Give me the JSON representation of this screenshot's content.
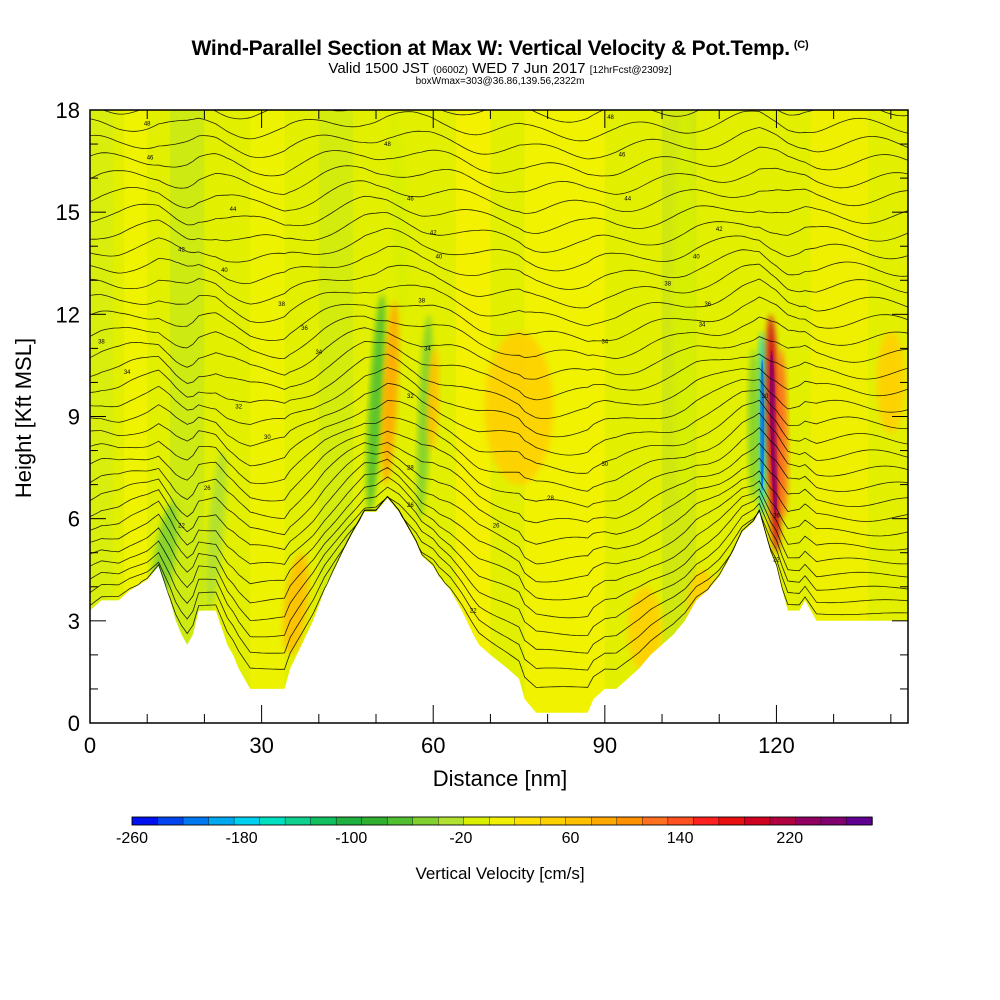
{
  "title": {
    "main": "Wind-Parallel Section at Max W: Vertical Velocity & Pot.Temp.",
    "copyright": "(C)",
    "valid_prefix": "Valid 1500 JST",
    "valid_utc": "(0600Z)",
    "valid_date": "WED 7 Jun 2017",
    "forecast": "[12hrFcst@2309z]",
    "box": "boxWmax=303@36.86,139.56,2322m"
  },
  "chart_data": {
    "type": "heatmap",
    "xlabel": "Distance [nm]",
    "ylabel": "Height [Kft MSL]",
    "xlim": [
      0,
      143
    ],
    "ylim": [
      0,
      18
    ],
    "x_ticks": [
      0,
      30,
      60,
      90,
      120
    ],
    "y_ticks": [
      0,
      3,
      6,
      9,
      12,
      15,
      18
    ],
    "terrain_kft": [
      [
        0,
        3.3
      ],
      [
        2,
        3.6
      ],
      [
        5,
        3.6
      ],
      [
        7,
        3.9
      ],
      [
        10,
        4.2
      ],
      [
        12,
        4.6
      ],
      [
        14,
        3.6
      ],
      [
        15,
        3.0
      ],
      [
        16,
        2.6
      ],
      [
        17,
        2.3
      ],
      [
        18,
        2.6
      ],
      [
        19,
        3.3
      ],
      [
        22,
        3.3
      ],
      [
        24,
        2.3
      ],
      [
        25,
        2.0
      ],
      [
        26,
        1.6
      ],
      [
        27,
        1.3
      ],
      [
        28,
        1.0
      ],
      [
        30,
        1.0
      ],
      [
        34,
        1.0
      ],
      [
        35,
        1.6
      ],
      [
        37,
        2.3
      ],
      [
        39,
        3.0
      ],
      [
        41,
        3.9
      ],
      [
        43,
        4.6
      ],
      [
        45,
        5.3
      ],
      [
        47,
        5.9
      ],
      [
        48,
        6.2
      ],
      [
        50,
        6.2
      ],
      [
        52,
        6.6
      ],
      [
        54,
        6.2
      ],
      [
        56,
        5.6
      ],
      [
        57,
        5.3
      ],
      [
        58,
        4.9
      ],
      [
        60,
        4.6
      ],
      [
        61,
        4.3
      ],
      [
        63,
        3.9
      ],
      [
        65,
        3.3
      ],
      [
        67,
        2.6
      ],
      [
        68,
        2.3
      ],
      [
        70,
        2.0
      ],
      [
        73,
        1.6
      ],
      [
        75,
        1.3
      ],
      [
        76,
        0.7
      ],
      [
        78,
        0.3
      ],
      [
        87,
        0.3
      ],
      [
        88,
        0.7
      ],
      [
        90,
        1.0
      ],
      [
        92,
        1.0
      ],
      [
        94,
        1.3
      ],
      [
        96,
        1.6
      ],
      [
        98,
        2.0
      ],
      [
        100,
        2.3
      ],
      [
        102,
        2.6
      ],
      [
        104,
        3.0
      ],
      [
        106,
        3.6
      ],
      [
        108,
        3.9
      ],
      [
        110,
        4.3
      ],
      [
        112,
        4.9
      ],
      [
        114,
        5.6
      ],
      [
        116,
        5.9
      ],
      [
        117,
        6.2
      ],
      [
        118,
        5.6
      ],
      [
        119,
        5.0
      ],
      [
        120,
        4.6
      ],
      [
        121,
        3.9
      ],
      [
        122,
        3.3
      ],
      [
        124,
        3.3
      ],
      [
        125,
        3.6
      ],
      [
        126,
        3.3
      ],
      [
        127,
        3.0
      ],
      [
        143,
        3.0
      ]
    ],
    "w_features": [
      {
        "x": 50,
        "z0": 6.2,
        "z1": 12.6,
        "w": -90,
        "width": 1.2,
        "tilt": -0.35
      },
      {
        "x": 52.5,
        "z0": 7.0,
        "z1": 12.4,
        "w": 80,
        "width": 1.3,
        "tilt": -0.3
      },
      {
        "x": 58.5,
        "z0": 6.0,
        "z1": 12.0,
        "w": -60,
        "width": 1.1,
        "tilt": -0.25
      },
      {
        "x": 60,
        "z0": 8.0,
        "z1": 11.0,
        "w": 50,
        "width": 1.0,
        "tilt": -0.2
      },
      {
        "x": 117.5,
        "z0": 6.0,
        "z1": 11.5,
        "w": -200,
        "width": 0.8,
        "tilt": 0.0
      },
      {
        "x": 119.5,
        "z0": 5.0,
        "z1": 12.0,
        "w": 200,
        "width": 1.2,
        "tilt": 0.15
      },
      {
        "x": 121,
        "z0": 6.0,
        "z1": 11.0,
        "w": 120,
        "width": 1.0,
        "tilt": 0.1
      },
      {
        "x": 116,
        "z0": 6.5,
        "z1": 11.0,
        "w": -60,
        "width": 1.0,
        "tilt": 0.0
      },
      {
        "x": 13,
        "z0": 3.2,
        "z1": 6.5,
        "w": -60,
        "width": 1.8,
        "tilt": -0.9
      },
      {
        "x": 22,
        "z0": 3.3,
        "z1": 8.0,
        "w": -40,
        "width": 1.4,
        "tilt": -0.5
      },
      {
        "x": 36,
        "z0": 2.0,
        "z1": 5.0,
        "w": 60,
        "width": 2.0,
        "tilt": -0.7
      },
      {
        "x": 75,
        "z0": 7.0,
        "z1": 11.5,
        "w": 30,
        "width": 6.0,
        "tilt": 0.0
      },
      {
        "x": 104,
        "z0": 6.0,
        "z1": 18.0,
        "w": -30,
        "width": 2.0,
        "tilt": 0.0
      },
      {
        "x": 54,
        "z0": 12.0,
        "z1": 18.0,
        "w": -30,
        "width": 1.5,
        "tilt": 0.3
      },
      {
        "x": 140,
        "z0": 8.5,
        "z1": 11.5,
        "w": 40,
        "width": 2.5,
        "tilt": 0.0
      },
      {
        "x": 97,
        "z0": 1.5,
        "z1": 4.0,
        "w": 40,
        "width": 3.0,
        "tilt": 0.0
      },
      {
        "x": 107,
        "z0": 2.5,
        "z1": 4.5,
        "w": 40,
        "width": 2.5,
        "tilt": 0.0
      }
    ],
    "theta_contour_labels": [
      {
        "x": 10,
        "z": 17.6,
        "text": "48"
      },
      {
        "x": 10.5,
        "z": 16.6,
        "text": "46"
      },
      {
        "x": 25,
        "z": 15.1,
        "text": "44"
      },
      {
        "x": 16,
        "z": 13.9,
        "text": "42"
      },
      {
        "x": 23.5,
        "z": 13.3,
        "text": "40"
      },
      {
        "x": 33.5,
        "z": 12.3,
        "text": "38"
      },
      {
        "x": 37.5,
        "z": 11.6,
        "text": "36"
      },
      {
        "x": 40,
        "z": 10.9,
        "text": "34"
      },
      {
        "x": 2,
        "z": 11.2,
        "text": "38"
      },
      {
        "x": 6.5,
        "z": 10.3,
        "text": "34"
      },
      {
        "x": 26,
        "z": 9.3,
        "text": "32"
      },
      {
        "x": 31,
        "z": 8.4,
        "text": "30"
      },
      {
        "x": 20.5,
        "z": 6.9,
        "text": "26"
      },
      {
        "x": 16,
        "z": 5.8,
        "text": "22"
      },
      {
        "x": 52,
        "z": 17.0,
        "text": "48"
      },
      {
        "x": 56,
        "z": 15.4,
        "text": "46"
      },
      {
        "x": 60,
        "z": 14.4,
        "text": "42"
      },
      {
        "x": 61,
        "z": 13.7,
        "text": "40"
      },
      {
        "x": 58,
        "z": 12.4,
        "text": "38"
      },
      {
        "x": 59,
        "z": 11.0,
        "text": "34"
      },
      {
        "x": 56,
        "z": 9.6,
        "text": "32"
      },
      {
        "x": 56,
        "z": 7.5,
        "text": "28"
      },
      {
        "x": 56,
        "z": 6.4,
        "text": "26"
      },
      {
        "x": 91,
        "z": 17.8,
        "text": "48"
      },
      {
        "x": 93,
        "z": 16.7,
        "text": "46"
      },
      {
        "x": 94,
        "z": 15.4,
        "text": "44"
      },
      {
        "x": 110,
        "z": 14.5,
        "text": "42"
      },
      {
        "x": 106,
        "z": 13.7,
        "text": "40"
      },
      {
        "x": 101,
        "z": 12.9,
        "text": "38"
      },
      {
        "x": 108,
        "z": 12.3,
        "text": "36"
      },
      {
        "x": 107,
        "z": 11.7,
        "text": "34"
      },
      {
        "x": 90,
        "z": 11.2,
        "text": "34"
      },
      {
        "x": 90,
        "z": 7.6,
        "text": "30"
      },
      {
        "x": 80.5,
        "z": 6.6,
        "text": "28"
      },
      {
        "x": 71,
        "z": 5.8,
        "text": "26"
      },
      {
        "x": 67,
        "z": 3.3,
        "text": "22"
      },
      {
        "x": 118,
        "z": 9.6,
        "text": "30"
      },
      {
        "x": 120,
        "z": 6.1,
        "text": "26"
      },
      {
        "x": 120,
        "z": 4.8,
        "text": "22"
      }
    ]
  },
  "colorbar": {
    "title": "Vertical Velocity [cm/s]",
    "labels": [
      "-260",
      "-180",
      "-100",
      "-20",
      "60",
      "140",
      "220"
    ],
    "colors": [
      "#0010f0",
      "#0044f0",
      "#0078f0",
      "#00a8f0",
      "#00d0f0",
      "#00e0c0",
      "#10d090",
      "#10c060",
      "#20b040",
      "#30b030",
      "#50c030",
      "#80d030",
      "#b0e030",
      "#d8f000",
      "#f0f000",
      "#ffe000",
      "#ffd000",
      "#ffc000",
      "#ffa800",
      "#ff9000",
      "#ff7020",
      "#ff5020",
      "#ff2020",
      "#e81010",
      "#d00020",
      "#b00040",
      "#900060",
      "#800070",
      "#600090"
    ]
  }
}
